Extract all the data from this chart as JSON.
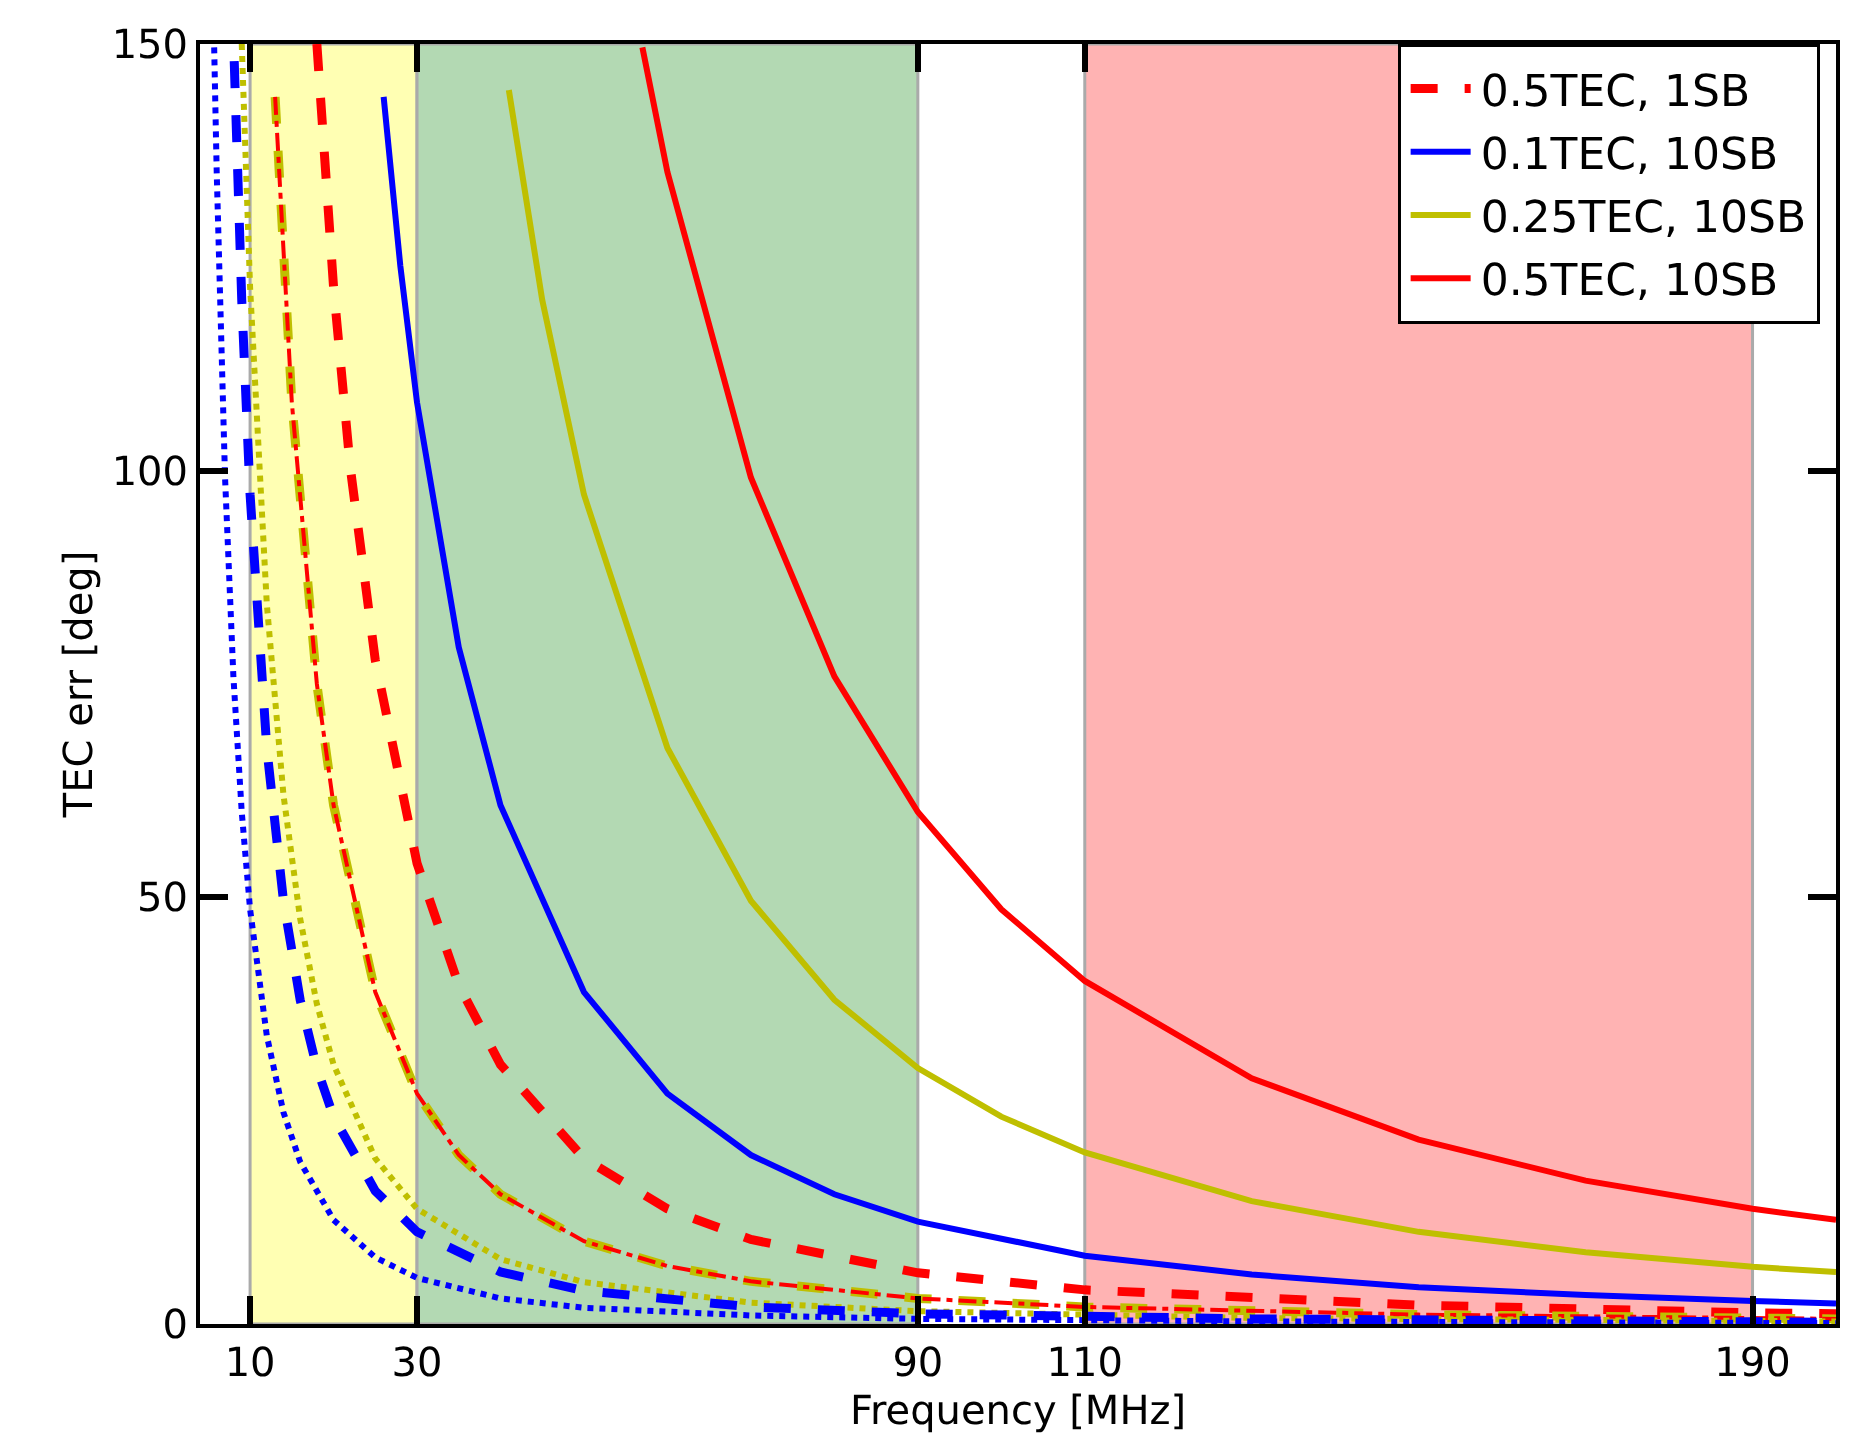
{
  "chart_data": {
    "type": "line",
    "xlabel": "Frequency [MHz]",
    "ylabel": "TEC err [deg]",
    "xlim": [
      4,
      200
    ],
    "ylim": [
      0,
      150
    ],
    "xticks": [
      10,
      30,
      90,
      110,
      190
    ],
    "yticks": [
      0,
      50,
      100,
      150
    ],
    "grid": false,
    "legend": "top right",
    "marker": "none",
    "bands": [
      {
        "axis": "x",
        "from": 10,
        "to": 30,
        "color": "#ffffb3"
      },
      {
        "axis": "x",
        "from": 30,
        "to": 90,
        "color": "#b3d9b3"
      },
      {
        "axis": "x",
        "from": 110,
        "to": 190,
        "color": "#ffb3b3"
      }
    ],
    "series": [
      {
        "name": "0.5TEC, 1SB",
        "color": "#ff0000",
        "line_style": "dashed",
        "x": [
          18,
          20,
          22,
          25,
          30,
          35,
          40,
          50,
          60,
          70,
          90,
          110,
          150,
          190,
          200
        ],
        "values": [
          150,
          121.5,
          100.4,
          77.8,
          54,
          39.7,
          30.4,
          19.4,
          13.5,
          9.9,
          6,
          4.0,
          2.2,
          1.3,
          1.2
        ]
      },
      {
        "name": "0.1TEC, 10SB",
        "color": "#0000ff",
        "line_style": "solid",
        "x": [
          26,
          28,
          30,
          35,
          40,
          50,
          60,
          70,
          80,
          90,
          110,
          130,
          150,
          170,
          190,
          200
        ],
        "values": [
          143.8,
          124,
          108,
          79.3,
          60.8,
          38.9,
          27,
          19.8,
          15.2,
          12,
          8.0,
          5.8,
          4.3,
          3.4,
          2.7,
          2.4
        ]
      },
      {
        "name": "0.25TEC, 10SB",
        "color": "#bfbf00",
        "line_style": "solid",
        "x": [
          41,
          45,
          50,
          60,
          70,
          80,
          90,
          100,
          110,
          130,
          150,
          170,
          190,
          200
        ],
        "values": [
          144.6,
          120,
          97.2,
          67.5,
          49.6,
          38,
          30,
          24.3,
          20.1,
          14.4,
          10.8,
          8.4,
          6.7,
          6.1
        ]
      },
      {
        "name": "0.5TEC, 10SB",
        "color": "#ff0000",
        "line_style": "solid",
        "x": [
          57,
          60,
          70,
          80,
          90,
          100,
          110,
          130,
          150,
          170,
          190,
          200
        ],
        "values": [
          149.6,
          135,
          99.2,
          75.9,
          60,
          48.6,
          40.2,
          28.8,
          21.6,
          16.8,
          13.5,
          12.2
        ]
      },
      {
        "color": "#bfbf00",
        "line_style": "dashed",
        "x": [
          13,
          15,
          18,
          20,
          25,
          30,
          35,
          40,
          50,
          60,
          70,
          90,
          110,
          150,
          200
        ],
        "values": [
          143.8,
          108,
          75,
          60.8,
          38.9,
          27,
          19.8,
          15.2,
          9.7,
          6.8,
          5,
          3,
          2,
          1.1,
          0.6
        ]
      },
      {
        "color": "#ff0000",
        "line_style": "dashdot",
        "x": [
          13,
          15,
          18,
          20,
          25,
          30,
          35,
          40,
          50,
          60,
          70,
          90,
          110,
          150,
          200
        ],
        "values": [
          143.8,
          108,
          75,
          60.8,
          38.9,
          27,
          19.8,
          15.2,
          9.7,
          6.8,
          5,
          3,
          2,
          1.1,
          0.6
        ]
      },
      {
        "color": "#bfbf00",
        "line_style": "dotted",
        "x": [
          9,
          10,
          12,
          14,
          16,
          18,
          20,
          25,
          30,
          40,
          50,
          70,
          90,
          130,
          200
        ],
        "values": [
          150,
          121.5,
          84.4,
          62,
          47.5,
          37.5,
          30.4,
          19.4,
          13.5,
          7.6,
          4.9,
          2.5,
          1.5,
          0.7,
          0.3
        ]
      },
      {
        "color": "#0000ff",
        "line_style": "dashed",
        "x": [
          8.1,
          9,
          10,
          12,
          14,
          16,
          18,
          20,
          25,
          30,
          40,
          50,
          70,
          90,
          130,
          200
        ],
        "values": [
          148,
          120,
          97.2,
          67.5,
          49.6,
          38,
          30,
          24.3,
          15.6,
          10.8,
          6.1,
          3.9,
          2,
          1.2,
          0.6,
          0.2
        ]
      },
      {
        "color": "#0000ff",
        "line_style": "dotted",
        "x": [
          5.7,
          6,
          7,
          8,
          9,
          10,
          12,
          14,
          16,
          20,
          25,
          30,
          40,
          50,
          70,
          90,
          130,
          200
        ],
        "values": [
          149.6,
          135,
          99.2,
          75.9,
          60,
          48.6,
          33.8,
          24.8,
          19,
          12.2,
          7.8,
          5.4,
          3,
          1.9,
          1,
          0.6,
          0.3,
          0.1
        ]
      }
    ]
  }
}
